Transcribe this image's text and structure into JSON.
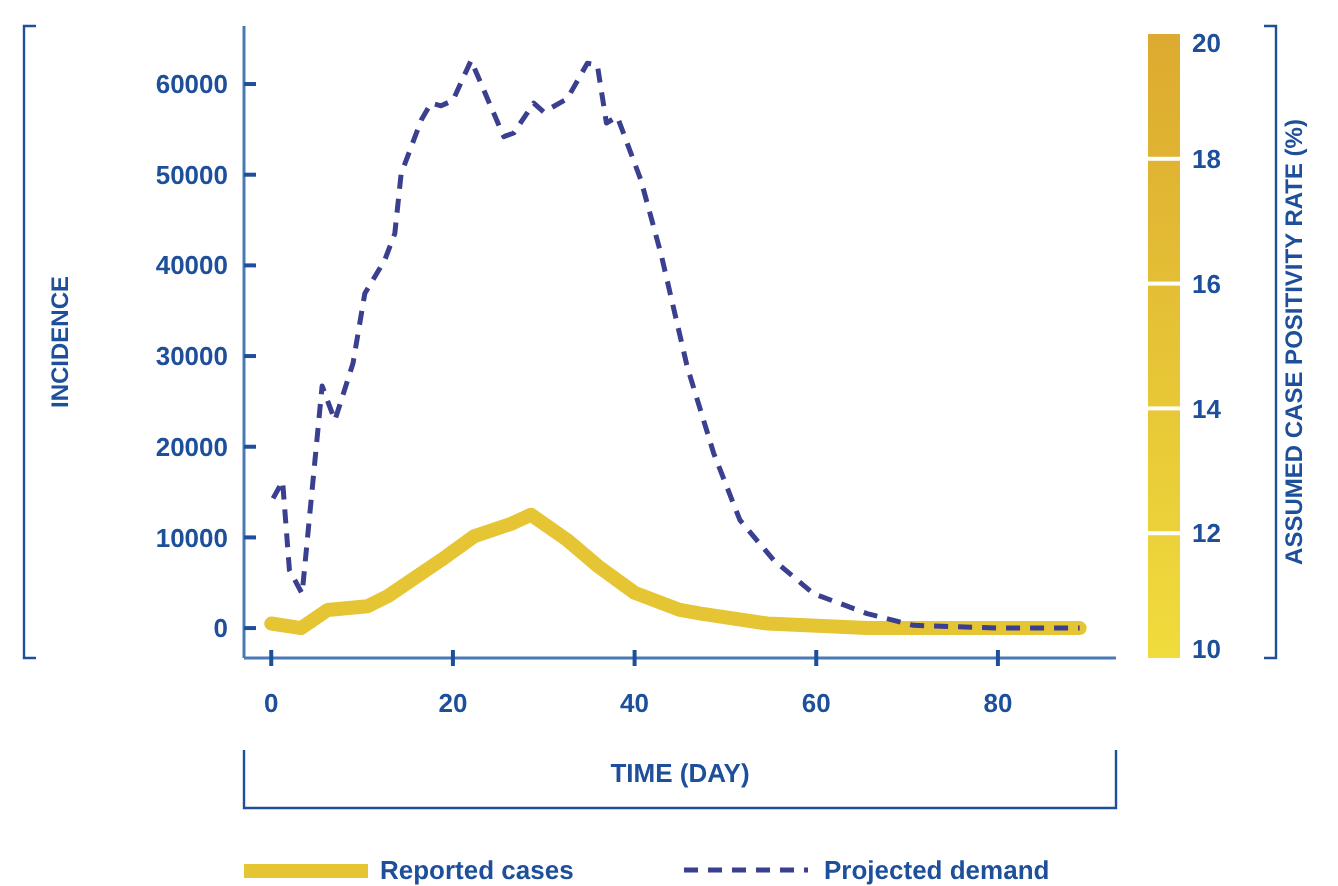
{
  "chart_data": {
    "type": "line",
    "xlabel": "TIME (DAY)",
    "ylabel": "INCIDENCE",
    "clabel": "ASSUMED CASE POSITIVITY RATE (%)",
    "clim": [
      10,
      20
    ],
    "cticks": [
      10,
      12,
      14,
      16,
      18,
      20
    ],
    "xlim": [
      -3,
      93
    ],
    "xticks": [
      0,
      20,
      40,
      60,
      80
    ],
    "ylim": [
      -3300,
      66400
    ],
    "yticks": [
      0,
      10000,
      20000,
      30000,
      40000,
      50000,
      60000
    ],
    "legend": "bottom",
    "series": [
      {
        "name": "Reported cases",
        "color": "#e6c535",
        "line_style": "solid",
        "x": [
          0,
          3.3,
          6.2,
          10.6,
          12.8,
          18.7,
          22.3,
          26.4,
          28.6,
          32.6,
          36,
          40,
          45,
          47.3,
          54.6,
          65.6,
          80,
          89
        ],
        "values": [
          500,
          0,
          2000,
          2400,
          3500,
          7500,
          10100,
          11500,
          12500,
          9700,
          6800,
          3900,
          2000,
          1600,
          500,
          0,
          0,
          0
        ]
      },
      {
        "name": "Projected demand",
        "color": "#3b3f8f",
        "line_style": "dashed",
        "x": [
          0.2,
          1.25,
          2,
          3.4,
          5.6,
          7,
          9,
          10.3,
          12.5,
          13.6,
          14.3,
          16.5,
          17.6,
          18.7,
          20,
          22,
          25.6,
          26.7,
          28.9,
          30,
          32.6,
          34.8,
          35.9,
          36.9,
          38.1,
          40.7,
          42.9,
          45.8,
          48.7,
          51.6,
          55.3,
          59.7,
          65.6,
          70.7,
          80.2,
          89
        ],
        "values": [
          14300,
          16200,
          6400,
          3800,
          26700,
          22900,
          29200,
          36900,
          40600,
          43500,
          50100,
          56000,
          57900,
          57600,
          58200,
          62600,
          54200,
          54600,
          57900,
          56900,
          58400,
          62300,
          62100,
          55700,
          56400,
          49400,
          41300,
          28800,
          19300,
          11900,
          7500,
          3800,
          1600,
          300,
          0,
          0
        ]
      }
    ]
  }
}
